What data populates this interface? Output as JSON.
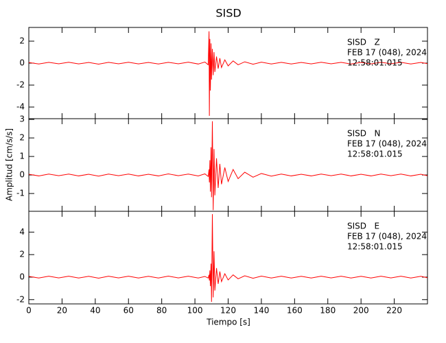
{
  "chart_data": {
    "type": "line",
    "title": "SISD",
    "x_label": "Tiempo [s]",
    "y_label": "Amplitud [cm/s/s]",
    "xlim": [
      0,
      240
    ],
    "xticks": [
      0,
      20,
      40,
      60,
      80,
      100,
      120,
      140,
      160,
      180,
      200,
      220
    ],
    "panels": [
      {
        "annotations": [
          "SISD   Z",
          "FEB 17 (048), 2024",
          "12:58:01.015"
        ],
        "ylim": [
          -5.06,
          3.25
        ],
        "yticks": [
          -4,
          -2,
          0,
          2
        ],
        "series": [
          {
            "color": "#ff0000",
            "x": [
              0,
              6,
              12,
              18,
              24,
              30,
              36,
              42,
              48,
              54,
              60,
              66,
              72,
              78,
              84,
              90,
              96,
              102,
              106,
              108,
              108.5,
              108.7,
              109,
              109.3,
              109.7,
              110,
              110.5,
              111,
              111.5,
              112,
              113,
              114,
              115,
              116,
              118,
              120,
              123,
              126,
              130,
              135,
              140,
              146,
              152,
              158,
              164,
              170,
              176,
              182,
              188,
              194,
              200,
              206,
              212,
              218,
              224,
              230,
              236,
              240
            ],
            "values": [
              0.06,
              -0.08,
              0.07,
              -0.06,
              0.08,
              -0.07,
              0.06,
              -0.09,
              0.07,
              -0.06,
              0.08,
              -0.07,
              0.06,
              -0.08,
              0.07,
              -0.06,
              0.09,
              -0.08,
              0.1,
              -0.15,
              2.9,
              -4.8,
              2.2,
              -2.5,
              1.8,
              -1.5,
              1.3,
              -1.1,
              1.0,
              -0.8,
              0.6,
              -0.5,
              0.45,
              -0.4,
              0.3,
              -0.25,
              0.2,
              -0.15,
              0.12,
              -0.1,
              0.09,
              -0.08,
              0.07,
              -0.08,
              0.06,
              -0.07,
              0.08,
              -0.06,
              0.07,
              -0.08,
              0.06,
              -0.07,
              0.08,
              -0.06,
              0.07,
              -0.08,
              0.06,
              -0.05
            ]
          }
        ]
      },
      {
        "annotations": [
          "SISD   N",
          "FEB 17 (048), 2024",
          "12:58:01.015"
        ],
        "ylim": [
          -1.96,
          3.04
        ],
        "yticks": [
          -1,
          0,
          1,
          2,
          3
        ],
        "series": [
          {
            "color": "#ff0000",
            "x": [
              0,
              6,
              12,
              18,
              24,
              30,
              36,
              42,
              48,
              54,
              60,
              66,
              72,
              78,
              84,
              90,
              96,
              102,
              106,
              108,
              108.5,
              108.7,
              109,
              109.3,
              109.7,
              110,
              110.5,
              111,
              111.5,
              112,
              113,
              114,
              115,
              116,
              118,
              120,
              123,
              126,
              130,
              135,
              140,
              146,
              152,
              158,
              164,
              170,
              176,
              182,
              188,
              194,
              200,
              206,
              212,
              218,
              224,
              230,
              236,
              240
            ],
            "values": [
              0.04,
              -0.05,
              0.05,
              -0.04,
              0.05,
              -0.05,
              0.04,
              -0.06,
              0.05,
              -0.04,
              0.05,
              -0.05,
              0.04,
              -0.05,
              0.06,
              -0.04,
              0.05,
              -0.05,
              0.06,
              -0.08,
              0.3,
              -0.4,
              0.8,
              -0.9,
              1.5,
              -1.2,
              2.9,
              -1.9,
              1.4,
              -1.1,
              0.9,
              -0.7,
              0.6,
              -0.5,
              0.4,
              -0.35,
              0.3,
              -0.2,
              0.15,
              -0.12,
              0.08,
              -0.06,
              0.05,
              -0.05,
              0.04,
              -0.05,
              0.05,
              -0.04,
              0.05,
              -0.05,
              0.04,
              -0.05,
              0.05,
              -0.04,
              0.05,
              -0.05,
              0.04,
              -0.04
            ]
          }
        ]
      },
      {
        "annotations": [
          "SISD   E",
          "FEB 17 (048), 2024",
          "12:58:01.015"
        ],
        "ylim": [
          -2.38,
          5.85
        ],
        "yticks": [
          -2,
          0,
          2,
          4
        ],
        "series": [
          {
            "color": "#ff0000",
            "x": [
              0,
              6,
              12,
              18,
              24,
              30,
              36,
              42,
              48,
              54,
              60,
              66,
              72,
              78,
              84,
              90,
              96,
              102,
              106,
              108,
              108.5,
              108.7,
              109,
              109.3,
              109.7,
              110,
              110.5,
              111,
              111.5,
              112,
              113,
              114,
              115,
              116,
              118,
              120,
              123,
              126,
              130,
              135,
              140,
              146,
              152,
              158,
              164,
              170,
              176,
              182,
              188,
              194,
              200,
              206,
              212,
              218,
              224,
              230,
              236,
              240
            ],
            "values": [
              0.07,
              -0.08,
              0.08,
              -0.07,
              0.08,
              -0.08,
              0.07,
              -0.09,
              0.08,
              -0.07,
              0.08,
              -0.08,
              0.07,
              -0.08,
              0.09,
              -0.07,
              0.08,
              -0.08,
              0.06,
              -0.08,
              0.2,
              -0.3,
              0.6,
              -0.8,
              1.2,
              -2.2,
              5.6,
              -1.8,
              2.3,
              -1.2,
              0.8,
              -0.6,
              0.5,
              -0.4,
              0.3,
              -0.25,
              0.2,
              -0.15,
              0.12,
              -0.1,
              0.09,
              -0.08,
              0.08,
              -0.08,
              0.07,
              -0.08,
              0.08,
              -0.07,
              0.08,
              -0.08,
              0.07,
              -0.08,
              0.08,
              -0.07,
              0.08,
              -0.08,
              0.07,
              -0.06
            ]
          }
        ]
      }
    ]
  }
}
